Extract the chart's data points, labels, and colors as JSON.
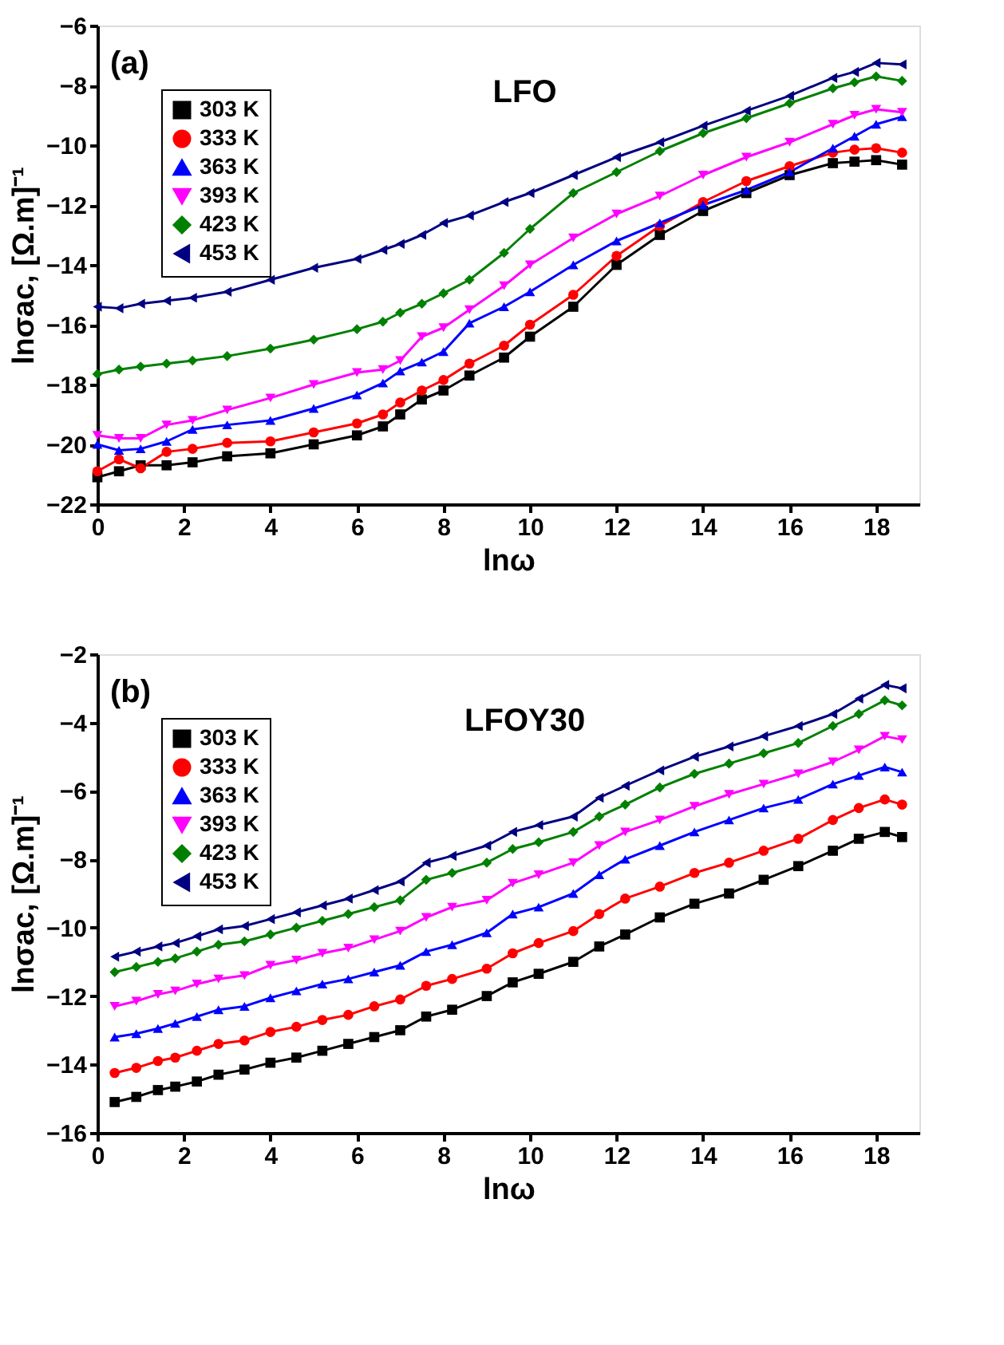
{
  "chart_data": [
    {
      "type": "line",
      "title": "LFO",
      "annotations": [
        "(a)"
      ],
      "xlabel": "lnω",
      "ylabel": "lnσac, [Ω.m]⁻¹",
      "x": [
        0,
        0.5,
        1,
        1.6,
        2.2,
        3,
        4,
        5,
        6,
        6.6,
        7,
        7.5,
        8,
        8.6,
        9.4,
        10,
        11,
        12,
        13,
        14,
        15,
        16,
        17,
        17.5,
        18,
        18.6
      ],
      "xlim": [
        0,
        19
      ],
      "xticks": [
        0,
        2,
        4,
        6,
        8,
        10,
        12,
        14,
        16,
        18
      ],
      "ylim": [
        -22,
        -6
      ],
      "yticks": [
        -22,
        -20,
        -18,
        -16,
        -14,
        -12,
        -10,
        -8,
        -6
      ],
      "grid": false,
      "legend": "top left",
      "line_style": "solid",
      "series": [
        {
          "name": "303 K",
          "color": "#000000",
          "marker": "square",
          "values": [
            -21.1,
            -20.9,
            -20.7,
            -20.7,
            -20.6,
            -20.4,
            -20.3,
            -20.0,
            -19.7,
            -19.4,
            -19.0,
            -18.5,
            -18.2,
            -17.7,
            -17.1,
            -16.4,
            -15.4,
            -14.0,
            -13.0,
            -12.2,
            -11.6,
            -11.0,
            -10.6,
            -10.55,
            -10.5,
            -10.65
          ]
        },
        {
          "name": "333 K",
          "color": "#ff0000",
          "marker": "circle",
          "values": [
            -20.9,
            -20.5,
            -20.8,
            -20.25,
            -20.15,
            -19.95,
            -19.9,
            -19.6,
            -19.3,
            -19.0,
            -18.6,
            -18.2,
            -17.85,
            -17.3,
            -16.7,
            -16.0,
            -15.0,
            -13.7,
            -12.7,
            -11.9,
            -11.2,
            -10.7,
            -10.25,
            -10.15,
            -10.1,
            -10.25
          ]
        },
        {
          "name": "363 K",
          "color": "#0000ff",
          "marker": "triangle",
          "values": [
            -20.0,
            -20.2,
            -20.15,
            -19.9,
            -19.5,
            -19.35,
            -19.2,
            -18.8,
            -18.35,
            -17.95,
            -17.55,
            -17.25,
            -16.9,
            -15.95,
            -15.4,
            -14.9,
            -14.0,
            -13.2,
            -12.6,
            -12.0,
            -11.5,
            -10.9,
            -10.1,
            -9.7,
            -9.3,
            -9.05
          ]
        },
        {
          "name": "393 K",
          "color": "#ff00ff",
          "marker": "triangle-down",
          "values": [
            -19.7,
            -19.8,
            -19.8,
            -19.35,
            -19.2,
            -18.85,
            -18.45,
            -18.0,
            -17.6,
            -17.5,
            -17.2,
            -16.4,
            -16.1,
            -15.5,
            -14.7,
            -14.0,
            -13.1,
            -12.3,
            -11.7,
            -11.0,
            -10.4,
            -9.9,
            -9.3,
            -9.0,
            -8.8,
            -8.9
          ]
        },
        {
          "name": "423 K",
          "color": "#008000",
          "marker": "diamond",
          "values": [
            -17.65,
            -17.5,
            -17.4,
            -17.3,
            -17.2,
            -17.05,
            -16.8,
            -16.5,
            -16.15,
            -15.9,
            -15.6,
            -15.3,
            -14.95,
            -14.5,
            -13.6,
            -12.8,
            -11.6,
            -10.9,
            -10.2,
            -9.6,
            -9.1,
            -8.6,
            -8.1,
            -7.9,
            -7.7,
            -7.85
          ]
        },
        {
          "name": "453 K",
          "color": "#000080",
          "marker": "triangle-left",
          "values": [
            -15.4,
            -15.45,
            -15.3,
            -15.2,
            -15.1,
            -14.9,
            -14.5,
            -14.1,
            -13.8,
            -13.5,
            -13.3,
            -13.0,
            -12.6,
            -12.35,
            -11.9,
            -11.6,
            -11.0,
            -10.4,
            -9.9,
            -9.35,
            -8.85,
            -8.35,
            -7.75,
            -7.55,
            -7.25,
            -7.3
          ]
        }
      ]
    },
    {
      "type": "line",
      "title": "LFOY30",
      "annotations": [
        "(b)"
      ],
      "xlabel": "lnω",
      "ylabel": "lnσac, [Ω.m]⁻¹",
      "x": [
        0.4,
        0.9,
        1.4,
        1.8,
        2.3,
        2.8,
        3.4,
        4,
        4.6,
        5.2,
        5.8,
        6.4,
        7,
        7.6,
        8.2,
        9,
        9.6,
        10.2,
        11,
        11.6,
        12.2,
        13,
        13.8,
        14.6,
        15.4,
        16.2,
        17,
        17.6,
        18.2,
        18.6
      ],
      "xlim": [
        0,
        19
      ],
      "xticks": [
        0,
        2,
        4,
        6,
        8,
        10,
        12,
        14,
        16,
        18
      ],
      "ylim": [
        -16,
        -2
      ],
      "yticks": [
        -16,
        -14,
        -12,
        -10,
        -8,
        -6,
        -4,
        -2
      ],
      "grid": false,
      "legend": "top left",
      "line_style": "solid",
      "series": [
        {
          "name": "303 K",
          "color": "#000000",
          "marker": "square",
          "values": [
            -15.1,
            -14.95,
            -14.75,
            -14.65,
            -14.5,
            -14.3,
            -14.15,
            -13.95,
            -13.8,
            -13.6,
            -13.4,
            -13.2,
            -13.0,
            -12.6,
            -12.4,
            -12.0,
            -11.6,
            -11.35,
            -11.0,
            -10.55,
            -10.2,
            -9.7,
            -9.3,
            -9.0,
            -8.6,
            -8.2,
            -7.75,
            -7.4,
            -7.2,
            -7.35
          ]
        },
        {
          "name": "333 K",
          "color": "#ff0000",
          "marker": "circle",
          "values": [
            -14.25,
            -14.1,
            -13.9,
            -13.8,
            -13.6,
            -13.4,
            -13.3,
            -13.05,
            -12.9,
            -12.7,
            -12.55,
            -12.3,
            -12.1,
            -11.7,
            -11.5,
            -11.2,
            -10.75,
            -10.45,
            -10.1,
            -9.6,
            -9.15,
            -8.8,
            -8.4,
            -8.1,
            -7.75,
            -7.4,
            -6.85,
            -6.5,
            -6.25,
            -6.4
          ]
        },
        {
          "name": "363 K",
          "color": "#0000ff",
          "marker": "triangle",
          "values": [
            -13.2,
            -13.1,
            -12.95,
            -12.8,
            -12.6,
            -12.4,
            -12.3,
            -12.05,
            -11.85,
            -11.65,
            -11.5,
            -11.3,
            -11.1,
            -10.7,
            -10.5,
            -10.15,
            -9.6,
            -9.4,
            -9.0,
            -8.45,
            -8.0,
            -7.6,
            -7.2,
            -6.85,
            -6.5,
            -6.25,
            -5.8,
            -5.55,
            -5.3,
            -5.45
          ]
        },
        {
          "name": "393 K",
          "color": "#ff00ff",
          "marker": "triangle-down",
          "values": [
            -12.3,
            -12.15,
            -11.95,
            -11.85,
            -11.65,
            -11.5,
            -11.4,
            -11.1,
            -10.95,
            -10.75,
            -10.6,
            -10.35,
            -10.1,
            -9.7,
            -9.4,
            -9.2,
            -8.7,
            -8.45,
            -8.1,
            -7.6,
            -7.2,
            -6.85,
            -6.45,
            -6.1,
            -5.8,
            -5.5,
            -5.15,
            -4.8,
            -4.4,
            -4.5
          ]
        },
        {
          "name": "423 K",
          "color": "#008000",
          "marker": "diamond",
          "values": [
            -11.3,
            -11.15,
            -11.0,
            -10.9,
            -10.7,
            -10.5,
            -10.4,
            -10.2,
            -10.0,
            -9.8,
            -9.6,
            -9.4,
            -9.2,
            -8.6,
            -8.4,
            -8.1,
            -7.7,
            -7.5,
            -7.2,
            -6.75,
            -6.4,
            -5.9,
            -5.5,
            -5.2,
            -4.9,
            -4.6,
            -4.1,
            -3.75,
            -3.35,
            -3.5
          ]
        },
        {
          "name": "453 K",
          "color": "#000080",
          "marker": "triangle-left",
          "values": [
            -10.85,
            -10.7,
            -10.55,
            -10.45,
            -10.25,
            -10.05,
            -9.95,
            -9.75,
            -9.55,
            -9.35,
            -9.15,
            -8.9,
            -8.65,
            -8.1,
            -7.9,
            -7.6,
            -7.2,
            -7.0,
            -6.75,
            -6.2,
            -5.85,
            -5.4,
            -5.0,
            -4.7,
            -4.4,
            -4.1,
            -3.75,
            -3.3,
            -2.9,
            -3.0
          ]
        }
      ]
    }
  ]
}
